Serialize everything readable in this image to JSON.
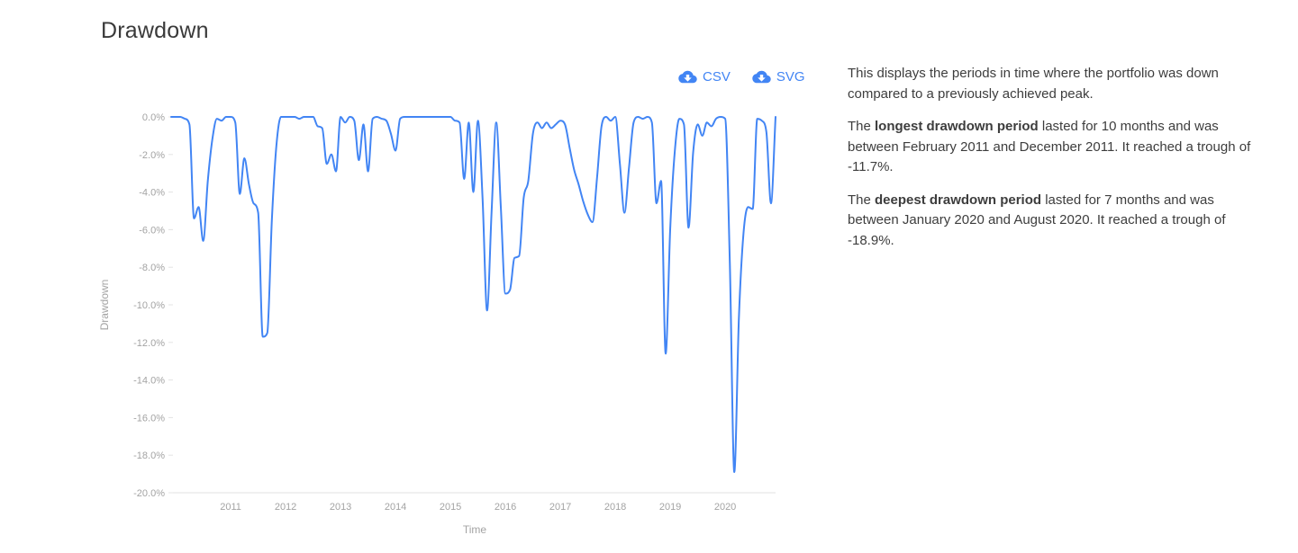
{
  "page": {
    "title": "Drawdown"
  },
  "toolbar": {
    "csv_label": "CSV",
    "svg_label": "SVG"
  },
  "description": {
    "p1": "This displays the periods in time where the portfolio was down compared to a previously achieved peak.",
    "p2": {
      "prefix": "The ",
      "bold": "longest drawdown period",
      "rest": " lasted for 10 months and was between February 2011 and December 2011. It reached a trough of -11.7%."
    },
    "p3": {
      "prefix": "The ",
      "bold": "deepest drawdown period",
      "rest": " lasted for 7 months and was between January 2020 and August 2020. It reached a trough of -18.9%."
    }
  },
  "colors": {
    "accent_blue": "#4285f4",
    "line": "#4285f4",
    "axis_text": "#a3a3a3",
    "axis_line": "#e0e0e0",
    "title_text": "#3a3a3a",
    "body_text": "#3d3d3d"
  },
  "chart_data": {
    "type": "line",
    "title": "Drawdown",
    "xlabel": "Time",
    "ylabel": "Drawdown",
    "x_tick_labels": [
      "2011",
      "2012",
      "2013",
      "2014",
      "2015",
      "2016",
      "2017",
      "2018",
      "2019",
      "2020"
    ],
    "y_tick_labels": [
      "0.0%",
      "-2.0%",
      "-4.0%",
      "-6.0%",
      "-8.0%",
      "-10.0%",
      "-12.0%",
      "-14.0%",
      "-16.0%",
      "-18.0%",
      "-20.0%"
    ],
    "ylim": [
      -20,
      0
    ],
    "grid": "none",
    "legend": "none",
    "x_start": "2009-12",
    "x_end": "2020-12",
    "frequency": "monthly",
    "unit": "percent",
    "series": [
      {
        "name": "Drawdown",
        "values": [
          0,
          0,
          0,
          -0.1,
          -0.4,
          -5.4,
          -4.8,
          -6.6,
          -3.4,
          -1.2,
          -0.1,
          -0.2,
          0,
          0,
          -0.3,
          -4.1,
          -2.2,
          -3.6,
          -4.6,
          -5.1,
          -11.7,
          -11.5,
          -5.5,
          -1.5,
          0,
          0,
          0,
          0,
          -0.1,
          0,
          0,
          0,
          -0.5,
          -0.6,
          -2.5,
          -2.0,
          -2.9,
          0,
          -0.3,
          0,
          -0.2,
          -2.3,
          -0.4,
          -2.9,
          -0.1,
          0,
          -0.1,
          -0.2,
          -0.9,
          -1.8,
          -0.1,
          0,
          0,
          0,
          0,
          0,
          0,
          0,
          0,
          0,
          0,
          0,
          -0.2,
          -0.3,
          -3.3,
          -0.3,
          -4.0,
          -0.2,
          -4.3,
          -10.3,
          -5.0,
          -0.3,
          -4.8,
          -9.4,
          -9.2,
          -7.5,
          -7.4,
          -4.3,
          -3.4,
          -0.9,
          -0.3,
          -0.6,
          -0.3,
          -0.6,
          -0.4,
          -0.2,
          -0.4,
          -1.6,
          -2.8,
          -3.6,
          -4.5,
          -5.2,
          -5.6,
          -3.3,
          -0.5,
          0,
          -0.2,
          0,
          -2.5,
          -5.1,
          -2.7,
          -0.3,
          0,
          -0.1,
          0,
          -0.3,
          -4.6,
          -3.4,
          -12.6,
          -5.9,
          -1.8,
          -0.1,
          -0.4,
          -5.9,
          -1.9,
          -0.4,
          -1.0,
          -0.3,
          -0.5,
          -0.1,
          0,
          -0.1,
          -7.7,
          -18.9,
          -10.7,
          -6.2,
          -4.8,
          -4.9,
          -0.1,
          -0.2,
          -0.8,
          -4.6,
          0
        ]
      }
    ]
  }
}
